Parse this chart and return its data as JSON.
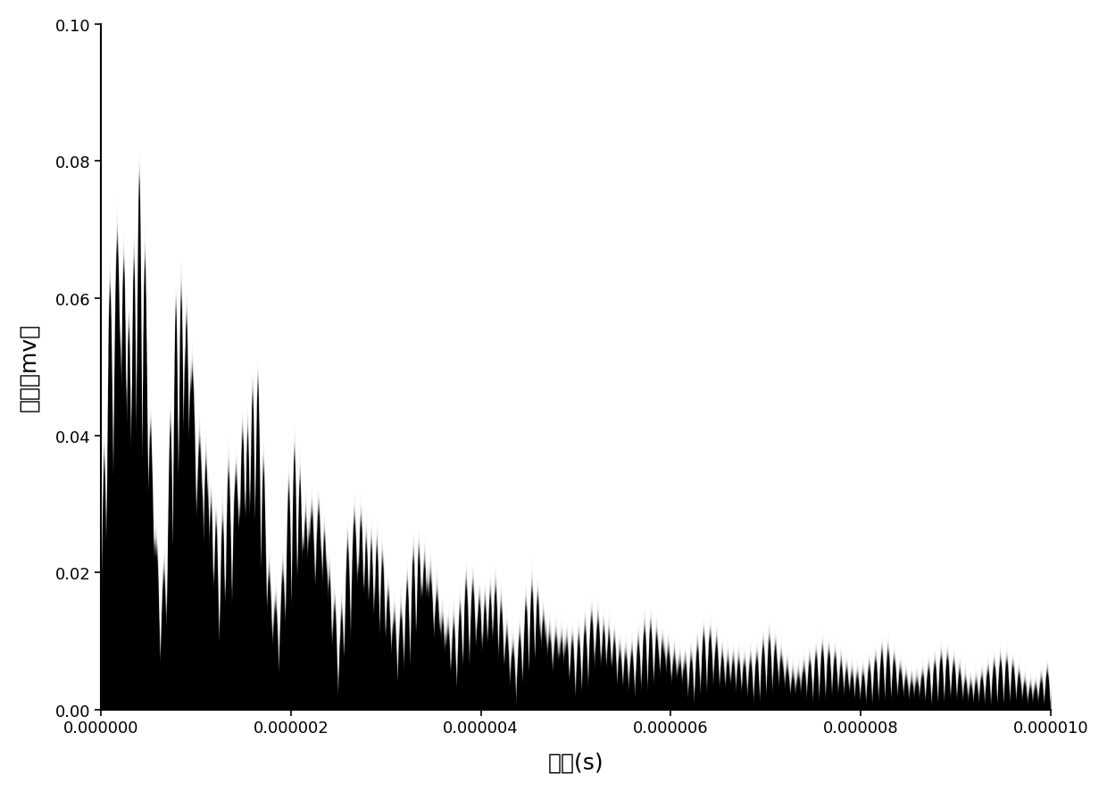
{
  "title": "",
  "xlabel": "时间(s)",
  "ylabel": "幅値（mv）",
  "xlim": [
    0,
    1e-05
  ],
  "ylim": [
    0,
    0.1
  ],
  "xticks": [
    0.0,
    2e-06,
    4e-06,
    6e-06,
    8e-06,
    1e-05
  ],
  "yticks": [
    0.0,
    0.02,
    0.04,
    0.06,
    0.08,
    0.1
  ],
  "line_color": "#000000",
  "background_color": "#ffffff",
  "decay_tau": 2.2e-06,
  "amplitude": 0.082,
  "baseline_noise": 0.008,
  "num_points": 100000,
  "spike_freq": 800000.0,
  "high_freq": 8000000.0
}
